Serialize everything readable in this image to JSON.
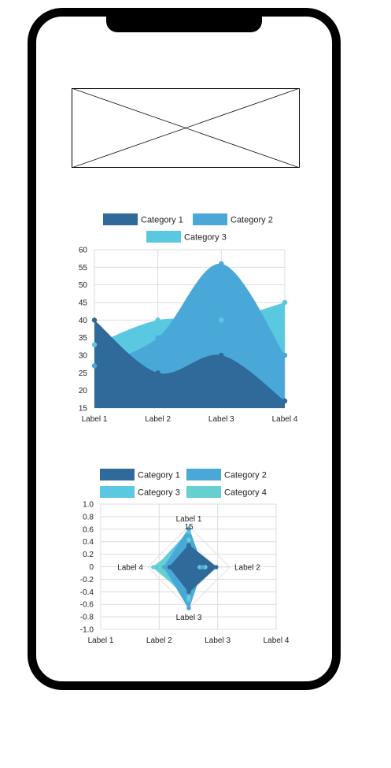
{
  "chart_data": [
    {
      "type": "area",
      "categories": [
        "Label 1",
        "Label 2",
        "Label 3",
        "Label 4"
      ],
      "series": [
        {
          "name": "Category 1",
          "values": [
            40,
            25,
            30,
            17
          ],
          "color": "#2f6a9a"
        },
        {
          "name": "Category 2",
          "values": [
            27,
            35,
            56,
            30
          ],
          "color": "#4aa8d8"
        },
        {
          "name": "Category 3",
          "values": [
            33,
            40,
            40,
            45
          ],
          "color": "#5bc8e2"
        }
      ],
      "ylim": [
        15,
        60
      ],
      "yticks": [
        15,
        20,
        25,
        30,
        35,
        40,
        45,
        50,
        55,
        60
      ],
      "grid": true,
      "legend": "top"
    },
    {
      "type": "radar",
      "axes": [
        "Label 1",
        "Label 2",
        "Label 3",
        "Label 4"
      ],
      "series": [
        {
          "name": "Category 1",
          "values": [
            8,
            10,
            9,
            7
          ],
          "color": "#2f6a9a"
        },
        {
          "name": "Category 2",
          "values": [
            14,
            5,
            15,
            9
          ],
          "color": "#4aa8d8"
        },
        {
          "name": "Category 3",
          "values": [
            13,
            4,
            12,
            12
          ],
          "color": "#5bc8e2"
        },
        {
          "name": "Category 4",
          "values": [
            10,
            6,
            11,
            13
          ],
          "color": "#66d0d0"
        }
      ],
      "radial_max": 15,
      "radial_tick": "15",
      "y_ticks": [
        "1.0",
        "0.8",
        "0.6",
        "0.4",
        "0.2",
        "0",
        "-0.2",
        "-0.4",
        "-0.6",
        "-0.8",
        "-1.0"
      ],
      "x_ticks": [
        "Label 1",
        "Label 2",
        "Label 3",
        "Label 4"
      ],
      "grid": true,
      "legend": "top"
    }
  ]
}
